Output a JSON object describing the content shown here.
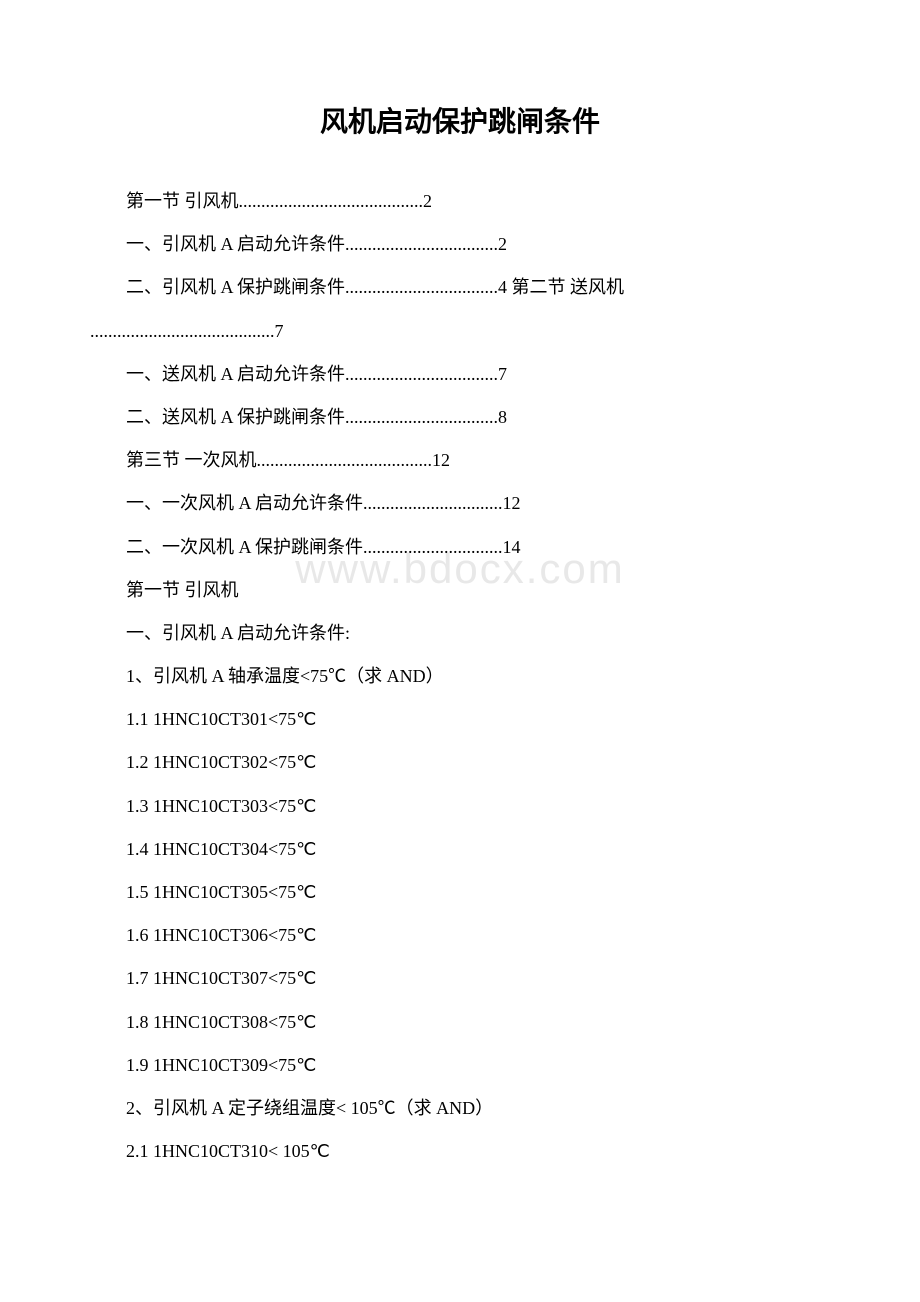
{
  "title": "风机启动保护跳闸条件",
  "watermark": "www.bdocx.com",
  "toc": {
    "line1": "第一节 引风机.........................................2",
    "line2": "一、引风机 A 启动允许条件..................................2",
    "line3": "二、引风机 A 保护跳闸条件..................................4 第二节 送风机",
    "line3_cont": ".........................................7",
    "line4": "一、送风机 A 启动允许条件..................................7",
    "line5": "二、送风机 A 保护跳闸条件..................................8",
    "line6": "第三节 一次风机.......................................12",
    "line7": "一、一次风机 A 启动允许条件...............................12",
    "line8": "二、一次风机 A 保护跳闸条件...............................14"
  },
  "content": {
    "section1_title": "第一节 引风机",
    "section1_sub1": "一、引风机 A 启动允许条件:",
    "item1": "1、引风机 A 轴承温度<75℃（求 AND）",
    "item1_1": "1.1 1HNC10CT301<75℃",
    "item1_2": "1.2 1HNC10CT302<75℃",
    "item1_3": "1.3 1HNC10CT303<75℃",
    "item1_4": "1.4 1HNC10CT304<75℃",
    "item1_5": "1.5 1HNC10CT305<75℃",
    "item1_6": "1.6 1HNC10CT306<75℃",
    "item1_7": "1.7 1HNC10CT307<75℃",
    "item1_8": "1.8 1HNC10CT308<75℃",
    "item1_9": "1.9 1HNC10CT309<75℃",
    "item2": "2、引风机 A 定子绕组温度< 105℃（求 AND）",
    "item2_1": "2.1 1HNC10CT310< 105℃"
  }
}
